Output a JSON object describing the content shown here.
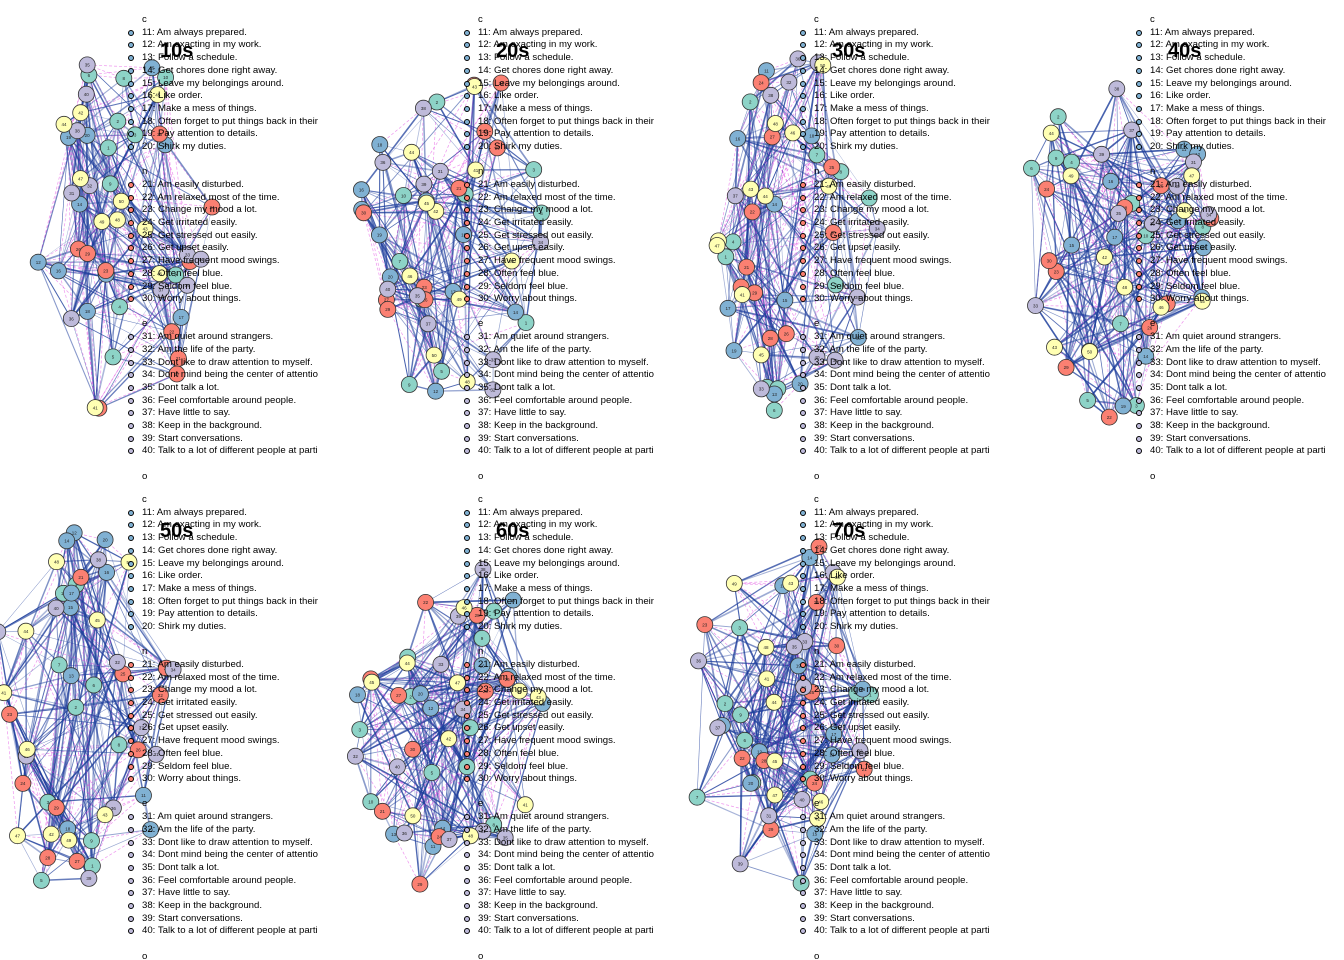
{
  "colors": {
    "c": "#80b1d3",
    "n": "#fb8072",
    "e": "#bebada",
    "a": "#8dd3c7",
    "o": "#ffffb3",
    "edge_pos": "#1f3f9c",
    "edge_neg": "#e040e0"
  },
  "panels": [
    {
      "title": "10s"
    },
    {
      "title": "20s"
    },
    {
      "title": "30s"
    },
    {
      "title": "40s"
    },
    {
      "title": "50s"
    },
    {
      "title": "60s"
    },
    {
      "title": "70s"
    }
  ],
  "legend": {
    "groups": [
      {
        "key": "c",
        "items": [
          "11: Am always prepared.",
          "12: Am exacting in my work.",
          "13: Follow a schedule.",
          "14: Get chores done right away.",
          "15: Leave my belongings around.",
          "16: Like order.",
          "17: Make a mess of things.",
          "18: Often forget to put things back in their",
          "19: Pay attention to details.",
          "20: Shirk my duties."
        ]
      },
      {
        "key": "n",
        "items": [
          "21: Am easily disturbed.",
          "22: Am relaxed most of the time.",
          "23: Change my mood a lot.",
          "24: Get irritated easily.",
          "25: Get stressed out easily.",
          "26: Get upset easily.",
          "27: Have frequent mood swings.",
          "28: Often feel blue.",
          "29: Seldom feel blue.",
          "30: Worry about things."
        ]
      },
      {
        "key": "e",
        "items": [
          "31: Am quiet around strangers.",
          "32: Am the life of the party.",
          "33: Dont like to draw attention to myself.",
          "34: Dont mind being the center of attentio",
          "35: Dont talk a lot.",
          "36: Feel comfortable around people.",
          "37: Have little to say.",
          "38: Keep in the background.",
          "39: Start conversations.",
          "40: Talk to a lot of different people at parti"
        ]
      },
      {
        "key": "o",
        "items": []
      }
    ]
  }
}
